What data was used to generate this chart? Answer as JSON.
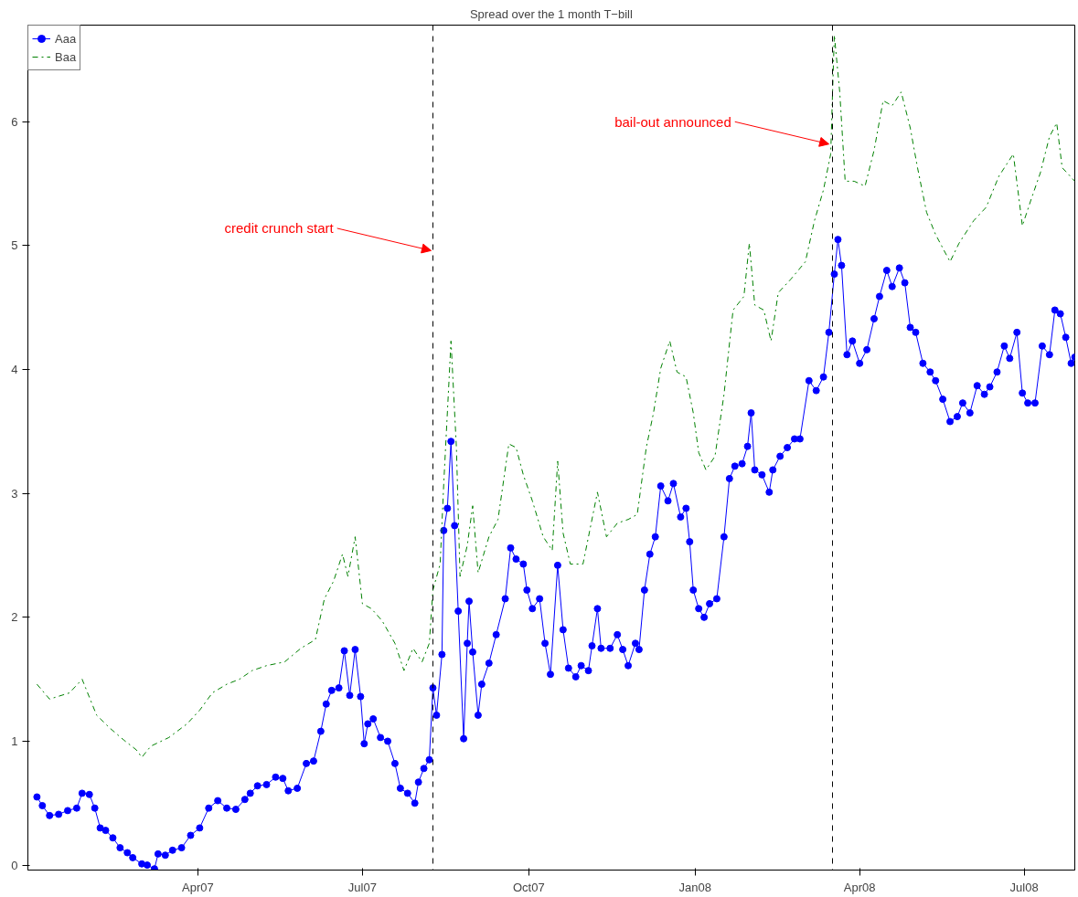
{
  "chart_data": {
    "type": "line",
    "title": "Spread over the 1 month T−bill",
    "xlim": [
      "2006-12-28",
      "2008-07-29"
    ],
    "ylim": [
      -0.04,
      6.78
    ],
    "yticks": [
      0,
      1,
      2,
      3,
      4,
      5,
      6
    ],
    "xticks": [
      {
        "value": "2007-04-01",
        "label": "Apr07"
      },
      {
        "value": "2007-07-01",
        "label": "Jul07"
      },
      {
        "value": "2007-10-01",
        "label": "Oct07"
      },
      {
        "value": "2008-01-01",
        "label": "Jan08"
      },
      {
        "value": "2008-04-01",
        "label": "Apr08"
      },
      {
        "value": "2008-07-01",
        "label": "Jul08"
      }
    ],
    "grid": false,
    "legend": "top left",
    "series": [
      {
        "name": "Aaa",
        "color": "#0000ff",
        "marker": "circle",
        "line_style": "solid",
        "x": [
          "2007-01-02",
          "2007-01-05",
          "2007-01-09",
          "2007-01-14",
          "2007-01-19",
          "2007-01-24",
          "2007-01-27",
          "2007-01-31",
          "2007-02-03",
          "2007-02-06",
          "2007-02-09",
          "2007-02-13",
          "2007-02-17",
          "2007-02-21",
          "2007-02-24",
          "2007-03-01",
          "2007-03-04",
          "2007-03-08",
          "2007-03-10",
          "2007-03-14",
          "2007-03-18",
          "2007-03-23",
          "2007-03-28",
          "2007-04-02",
          "2007-04-07",
          "2007-04-12",
          "2007-04-17",
          "2007-04-22",
          "2007-04-27",
          "2007-04-30",
          "2007-05-04",
          "2007-05-09",
          "2007-05-14",
          "2007-05-18",
          "2007-05-21",
          "2007-05-26",
          "2007-05-31",
          "2007-06-04",
          "2007-06-08",
          "2007-06-11",
          "2007-06-14",
          "2007-06-18",
          "2007-06-21",
          "2007-06-24",
          "2007-06-27",
          "2007-06-30",
          "2007-07-02",
          "2007-07-04",
          "2007-07-07",
          "2007-07-11",
          "2007-07-15",
          "2007-07-19",
          "2007-07-22",
          "2007-07-26",
          "2007-07-30",
          "2007-08-01",
          "2007-08-04",
          "2007-08-07",
          "2007-08-09",
          "2007-08-11",
          "2007-08-14",
          "2007-08-15",
          "2007-08-17",
          "2007-08-19",
          "2007-08-21",
          "2007-08-23",
          "2007-08-26",
          "2007-08-28",
          "2007-08-29",
          "2007-08-31",
          "2007-09-03",
          "2007-09-05",
          "2007-09-09",
          "2007-09-13",
          "2007-09-18",
          "2007-09-21",
          "2007-09-24",
          "2007-09-28",
          "2007-09-30",
          "2007-10-03",
          "2007-10-07",
          "2007-10-10",
          "2007-10-13",
          "2007-10-17",
          "2007-10-20",
          "2007-10-23",
          "2007-10-27",
          "2007-10-30",
          "2007-11-03",
          "2007-11-05",
          "2007-11-08",
          "2007-11-10",
          "2007-11-15",
          "2007-11-19",
          "2007-11-22",
          "2007-11-25",
          "2007-11-29",
          "2007-12-01",
          "2007-12-04",
          "2007-12-07",
          "2007-12-10",
          "2007-12-13",
          "2007-12-17",
          "2007-12-20",
          "2007-12-24",
          "2007-12-27",
          "2007-12-29",
          "2007-12-31",
          "2008-01-03",
          "2008-01-06",
          "2008-01-09",
          "2008-01-13",
          "2008-01-17",
          "2008-01-20",
          "2008-01-23",
          "2008-01-27",
          "2008-01-30",
          "2008-02-01",
          "2008-02-03",
          "2008-02-07",
          "2008-02-11",
          "2008-02-13",
          "2008-02-17",
          "2008-02-21",
          "2008-02-25",
          "2008-02-28",
          "2008-03-04",
          "2008-03-08",
          "2008-03-12",
          "2008-03-15",
          "2008-03-18",
          "2008-03-20",
          "2008-03-22",
          "2008-03-25",
          "2008-03-28",
          "2008-04-01",
          "2008-04-05",
          "2008-04-09",
          "2008-04-12",
          "2008-04-16",
          "2008-04-19",
          "2008-04-23",
          "2008-04-26",
          "2008-04-29",
          "2008-05-02",
          "2008-05-06",
          "2008-05-10",
          "2008-05-13",
          "2008-05-17",
          "2008-05-21",
          "2008-05-25",
          "2008-05-28",
          "2008-06-01",
          "2008-06-05",
          "2008-06-09",
          "2008-06-12",
          "2008-06-16",
          "2008-06-20",
          "2008-06-23",
          "2008-06-27",
          "2008-06-30",
          "2008-07-03",
          "2008-07-07",
          "2008-07-11",
          "2008-07-15",
          "2008-07-18",
          "2008-07-21",
          "2008-07-24",
          "2008-07-27",
          "2008-07-29"
        ],
        "values": [
          0.55,
          0.48,
          0.4,
          0.41,
          0.44,
          0.46,
          0.58,
          0.57,
          0.46,
          0.3,
          0.28,
          0.22,
          0.14,
          0.1,
          0.06,
          0.01,
          0.0,
          -0.03,
          0.09,
          0.08,
          0.12,
          0.14,
          0.24,
          0.3,
          0.46,
          0.52,
          0.46,
          0.45,
          0.53,
          0.58,
          0.64,
          0.65,
          0.71,
          0.7,
          0.6,
          0.62,
          0.82,
          0.84,
          1.08,
          1.3,
          1.41,
          1.43,
          1.73,
          1.37,
          1.74,
          1.36,
          0.98,
          1.14,
          1.18,
          1.03,
          1.0,
          0.82,
          0.62,
          0.58,
          0.5,
          0.67,
          0.78,
          0.85,
          1.43,
          1.21,
          1.7,
          2.7,
          2.88,
          3.42,
          2.74,
          2.05,
          1.02,
          1.79,
          2.13,
          1.72,
          1.21,
          1.46,
          1.63,
          1.86,
          2.15,
          2.56,
          2.47,
          2.43,
          2.22,
          2.07,
          2.15,
          1.79,
          1.54,
          2.42,
          1.9,
          1.59,
          1.52,
          1.61,
          1.57,
          1.77,
          2.07,
          1.75,
          1.75,
          1.86,
          1.74,
          1.61,
          1.79,
          1.74,
          2.22,
          2.51,
          2.65,
          3.06,
          2.94,
          3.08,
          2.81,
          2.88,
          2.61,
          2.22,
          2.07,
          2.0,
          2.11,
          2.15,
          2.65,
          3.12,
          3.22,
          3.24,
          3.38,
          3.65,
          3.19,
          3.15,
          3.01,
          3.19,
          3.3,
          3.37,
          3.44,
          3.44,
          3.91,
          3.83,
          3.94,
          4.3,
          4.77,
          5.05,
          4.84,
          4.12,
          4.23,
          4.05,
          4.16,
          4.41,
          4.59,
          4.8,
          4.67,
          4.82,
          4.7,
          4.34,
          4.3,
          4.05,
          3.98,
          3.91,
          3.76,
          3.58,
          3.62,
          3.73,
          3.65,
          3.87,
          3.8,
          3.86,
          3.98,
          4.19,
          4.09,
          4.3,
          3.81,
          3.73,
          3.73,
          4.19,
          4.12,
          4.48,
          4.45,
          4.26,
          4.05,
          4.1
        ]
      },
      {
        "name": "Baa",
        "color": "#008000",
        "marker": "none",
        "line_style": "dashdot",
        "x": [
          "2007-01-02",
          "2007-01-09",
          "2007-01-20",
          "2007-01-27",
          "2007-02-04",
          "2007-02-11",
          "2007-02-19",
          "2007-02-26",
          "2007-03-01",
          "2007-03-06",
          "2007-03-16",
          "2007-03-26",
          "2007-04-02",
          "2007-04-09",
          "2007-04-17",
          "2007-04-24",
          "2007-05-01",
          "2007-05-09",
          "2007-05-19",
          "2007-05-28",
          "2007-06-05",
          "2007-06-10",
          "2007-06-15",
          "2007-06-20",
          "2007-06-23",
          "2007-06-27",
          "2007-07-01",
          "2007-07-06",
          "2007-07-12",
          "2007-07-19",
          "2007-07-24",
          "2007-07-29",
          "2007-08-03",
          "2007-08-07",
          "2007-08-09",
          "2007-08-13",
          "2007-08-15",
          "2007-08-18",
          "2007-08-19",
          "2007-08-22",
          "2007-08-24",
          "2007-08-28",
          "2007-08-31",
          "2007-09-03",
          "2007-09-09",
          "2007-09-14",
          "2007-09-20",
          "2007-09-24",
          "2007-09-28",
          "2007-10-03",
          "2007-10-09",
          "2007-10-14",
          "2007-10-17",
          "2007-10-20",
          "2007-10-24",
          "2007-10-31",
          "2007-11-08",
          "2007-11-13",
          "2007-11-19",
          "2007-11-25",
          "2007-11-30",
          "2007-12-05",
          "2007-12-09",
          "2007-12-13",
          "2007-12-18",
          "2007-12-22",
          "2007-12-27",
          "2007-12-31",
          "2008-01-03",
          "2008-01-07",
          "2008-01-12",
          "2008-01-17",
          "2008-01-22",
          "2008-01-28",
          "2008-01-31",
          "2008-02-03",
          "2008-02-08",
          "2008-02-12",
          "2008-02-16",
          "2008-02-23",
          "2008-03-02",
          "2008-03-07",
          "2008-03-12",
          "2008-03-16",
          "2008-03-18",
          "2008-03-21",
          "2008-03-24",
          "2008-03-29",
          "2008-04-04",
          "2008-04-09",
          "2008-04-14",
          "2008-04-19",
          "2008-04-24",
          "2008-04-29",
          "2008-05-03",
          "2008-05-08",
          "2008-05-13",
          "2008-05-21",
          "2008-05-26",
          "2008-06-03",
          "2008-06-10",
          "2008-06-17",
          "2008-06-25",
          "2008-06-30",
          "2008-07-05",
          "2008-07-10",
          "2008-07-15",
          "2008-07-19",
          "2008-07-22",
          "2008-07-29"
        ],
        "values": [
          1.46,
          1.34,
          1.39,
          1.5,
          1.21,
          1.11,
          1.01,
          0.93,
          0.87,
          0.96,
          1.03,
          1.14,
          1.25,
          1.39,
          1.46,
          1.5,
          1.57,
          1.61,
          1.64,
          1.75,
          1.82,
          2.15,
          2.29,
          2.51,
          2.33,
          2.65,
          2.11,
          2.07,
          1.97,
          1.79,
          1.57,
          1.75,
          1.64,
          1.79,
          2.22,
          2.43,
          3.08,
          3.94,
          4.23,
          3.37,
          2.33,
          2.58,
          2.9,
          2.36,
          2.65,
          2.79,
          3.4,
          3.37,
          3.15,
          2.94,
          2.65,
          2.54,
          3.26,
          2.68,
          2.43,
          2.43,
          3.01,
          2.65,
          2.76,
          2.79,
          2.83,
          3.37,
          3.65,
          4.01,
          4.23,
          3.98,
          3.94,
          3.65,
          3.33,
          3.19,
          3.3,
          3.8,
          4.48,
          4.59,
          5.02,
          4.52,
          4.48,
          4.23,
          4.62,
          4.73,
          4.87,
          5.2,
          5.45,
          5.74,
          6.7,
          6.24,
          5.52,
          5.52,
          5.48,
          5.77,
          6.17,
          6.13,
          6.24,
          5.95,
          5.63,
          5.27,
          5.09,
          4.87,
          5.02,
          5.2,
          5.31,
          5.56,
          5.74,
          5.16,
          5.38,
          5.59,
          5.88,
          5.99,
          5.63,
          5.52
        ]
      }
    ],
    "ref_lines": [
      {
        "axis": "x",
        "value": "2007-08-09",
        "color": "#000000",
        "line_style": "dashed"
      },
      {
        "axis": "x",
        "value": "2008-03-17",
        "color": "#000000",
        "line_style": "dashed"
      }
    ],
    "annotations": [
      {
        "text": "credit crunch start",
        "x": "2007-08-08",
        "y": 4.96
      },
      {
        "text": "bail-out announced",
        "x": "2008-03-15",
        "y": 5.82
      }
    ]
  }
}
